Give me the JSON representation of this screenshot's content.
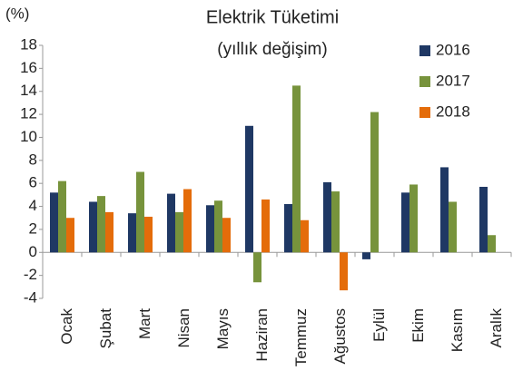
{
  "chart_data": {
    "type": "bar",
    "title": "Elektrik Tüketimi",
    "subtitle": "(yıllık değişim)",
    "y_label": "(%)",
    "categories": [
      "Ocak",
      "Şubat",
      "Mart",
      "Nisan",
      "Mayıs",
      "Haziran",
      "Temmuz",
      "Ağustos",
      "Eylül",
      "Ekim",
      "Kasım",
      "Aralık"
    ],
    "series": [
      {
        "name": "2016",
        "color": "#1f3864",
        "values": [
          5.2,
          4.4,
          3.4,
          5.1,
          4.1,
          11.0,
          4.2,
          6.1,
          -0.6,
          5.2,
          7.4,
          5.7
        ]
      },
      {
        "name": "2017",
        "color": "#77933c",
        "values": [
          6.2,
          4.9,
          7.0,
          3.5,
          4.5,
          -2.6,
          14.5,
          5.3,
          12.2,
          5.9,
          4.4,
          1.5
        ]
      },
      {
        "name": "2018",
        "color": "#e46c0a",
        "values": [
          3.0,
          3.5,
          3.1,
          5.5,
          3.0,
          4.6,
          2.8,
          -3.3,
          null,
          null,
          null,
          null
        ]
      }
    ],
    "ylim": [
      -4,
      18
    ],
    "yticks": [
      -4,
      -2,
      0,
      2,
      4,
      6,
      8,
      10,
      12,
      14,
      16,
      18
    ],
    "grid": false,
    "legend": "top-right"
  }
}
